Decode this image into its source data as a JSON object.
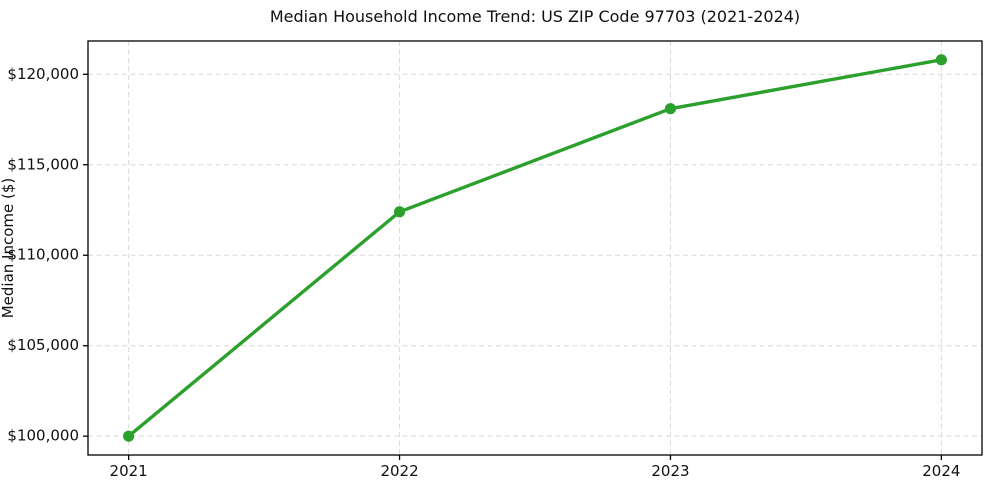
{
  "chart_data": {
    "type": "line",
    "title": "Median Household Income Trend: US ZIP Code 97703 (2021-2024)",
    "xlabel": "",
    "ylabel": "Median Income ($)",
    "x": [
      2021,
      2022,
      2023,
      2024
    ],
    "series": [
      {
        "name": "Median Household Income",
        "values": [
          100000,
          112400,
          118100,
          120800
        ],
        "color": "#2ca02c"
      }
    ],
    "xlim": [
      2020.85,
      2024.15
    ],
    "ylim": [
      98960,
      121840
    ],
    "xticks": {
      "values": [
        2021,
        2022,
        2023,
        2024
      ],
      "labels": [
        "2021",
        "2022",
        "2023",
        "2024"
      ]
    },
    "yticks": {
      "values": [
        100000,
        105000,
        110000,
        115000,
        120000
      ],
      "labels": [
        "$100,000",
        "$105,000",
        "$110,000",
        "$115,000",
        "$120,000"
      ]
    },
    "grid": true,
    "grid_style": "dashed",
    "legend": false,
    "colors": {
      "line": "#2ca02c",
      "marker": "#2ca02c",
      "grid": "#d9d9d9",
      "spine": "#000000",
      "background": "#ffffff",
      "text": "#111111"
    }
  }
}
